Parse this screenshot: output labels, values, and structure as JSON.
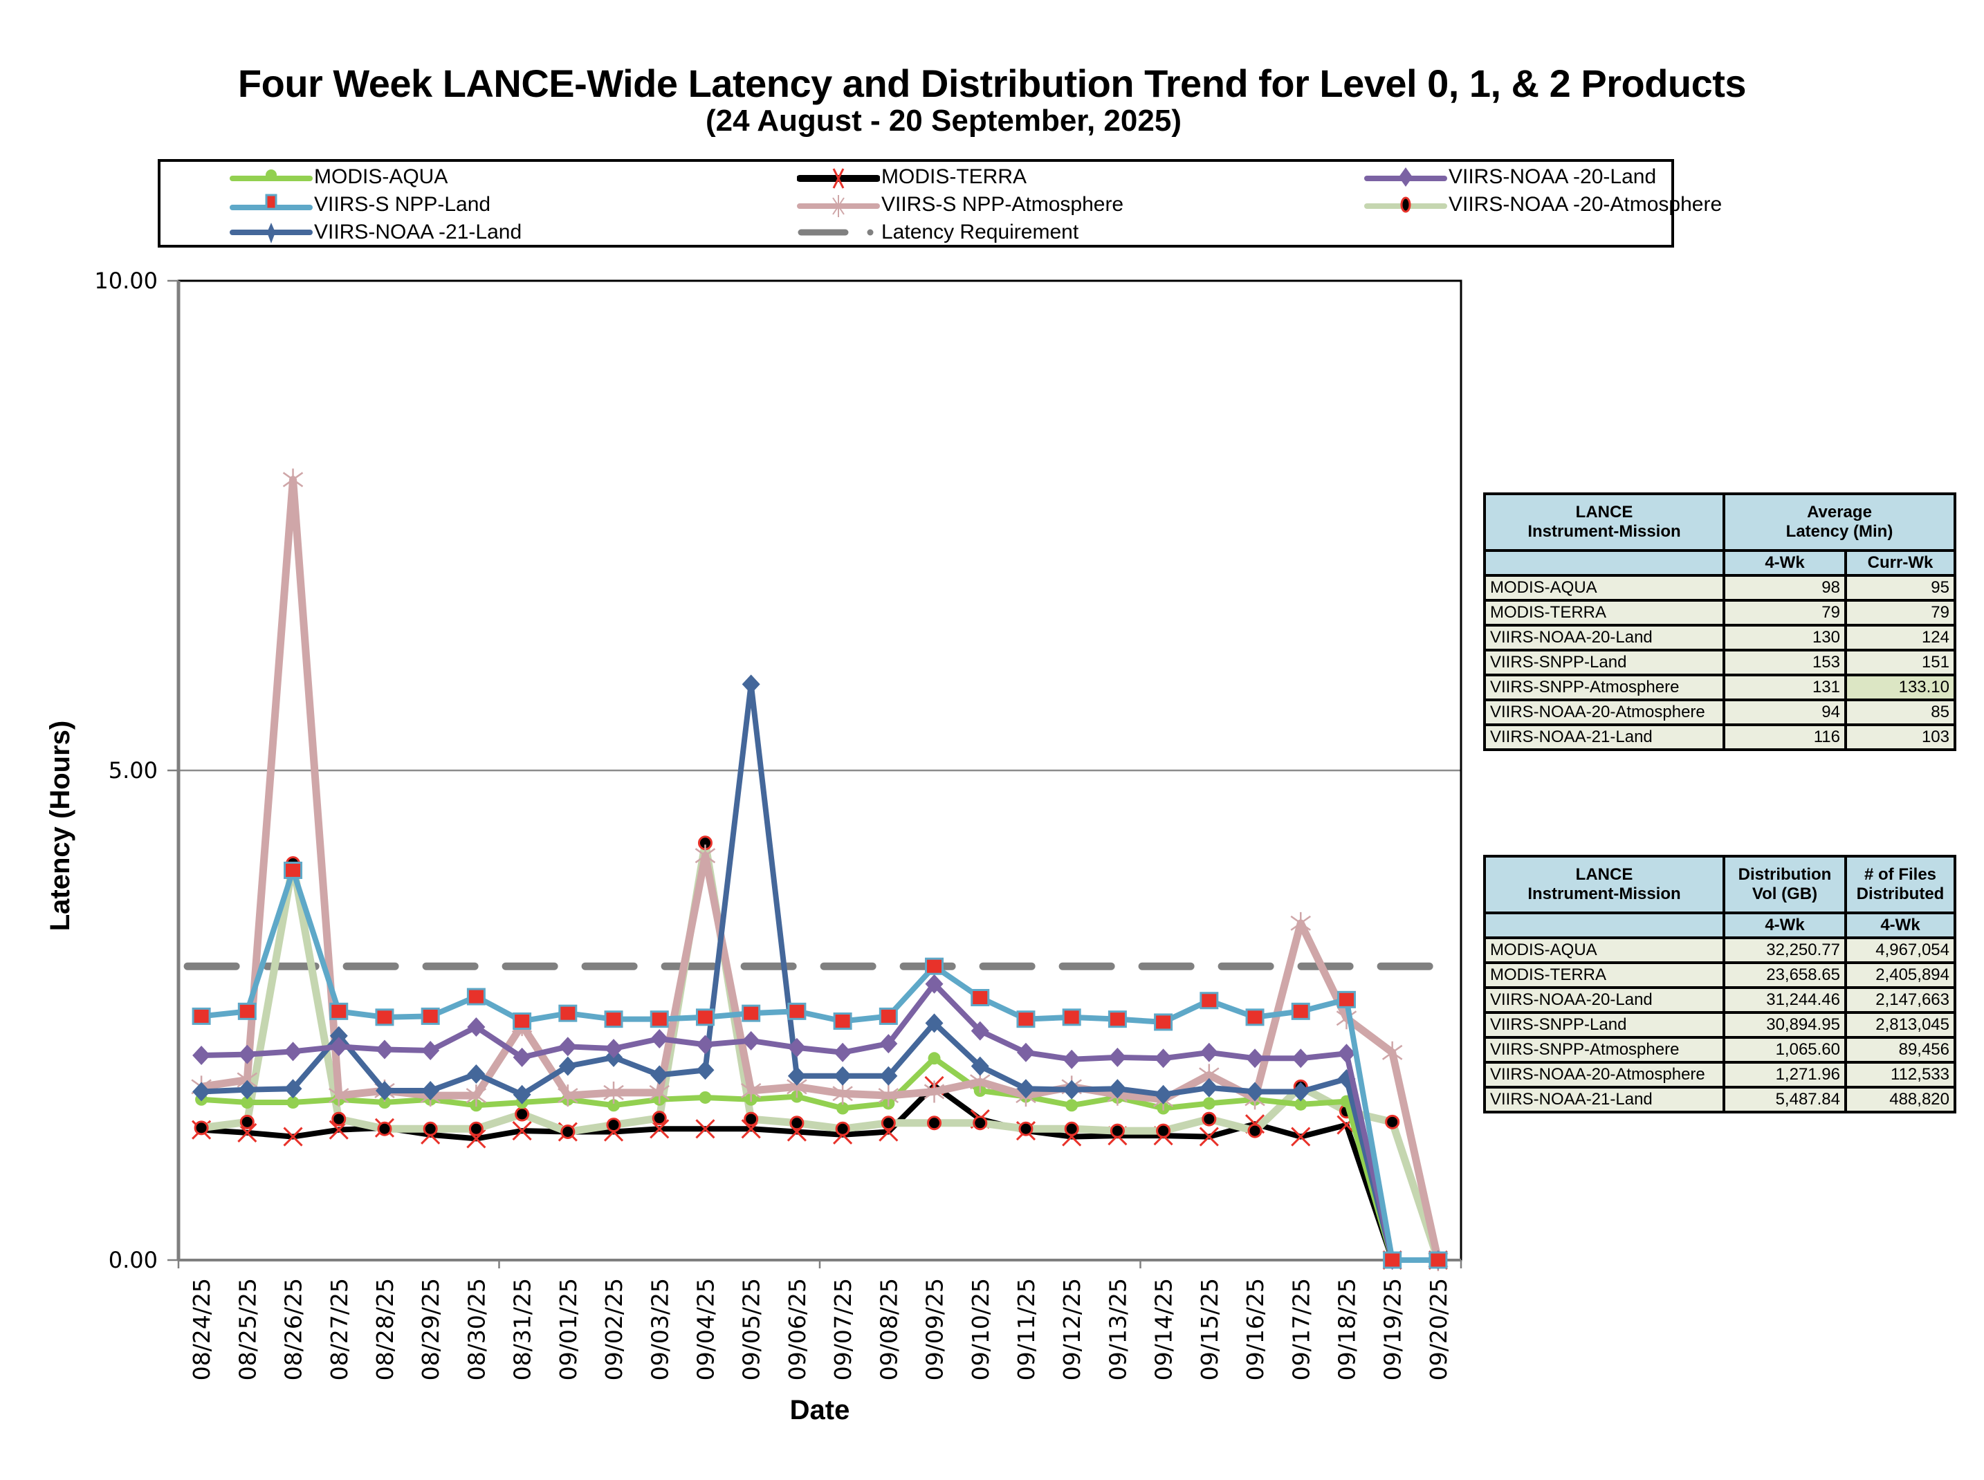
{
  "page": {
    "title": "Four Week LANCE-Wide Latency and Distribution Trend for Level 0, 1, & 2 Products",
    "subtitle": "(24  August    -  20  September,  2025)"
  },
  "chart_data": {
    "type": "line",
    "title": "Four Week LANCE-Wide Latency and Distribution Trend for Level 0, 1, & 2 Products",
    "subtitle": "(24  August    -  20  September,  2025)",
    "xlabel": "Date",
    "ylabel": "Latency (Hours)",
    "ylim": [
      0,
      10
    ],
    "yticks": [
      "0.00",
      "5.00",
      "10.00"
    ],
    "ytick_values": [
      0,
      5,
      10
    ],
    "grid": "horizontal at 5.00",
    "legend_position": "top",
    "categories": [
      "08/24/25",
      "08/25/25",
      "08/26/25",
      "08/27/25",
      "08/28/25",
      "08/29/25",
      "08/30/25",
      "08/31/25",
      "09/01/25",
      "09/02/25",
      "09/03/25",
      "09/04/25",
      "09/05/25",
      "09/06/25",
      "09/07/25",
      "09/08/25",
      "09/09/25",
      "09/10/25",
      "09/11/25",
      "09/12/25",
      "09/13/25",
      "09/14/25",
      "09/15/25",
      "09/16/25",
      "09/17/25",
      "09/18/25",
      "09/19/25",
      "09/20/25"
    ],
    "series": [
      {
        "name": "MODIS-AQUA",
        "color": "#92d050",
        "marker": "circle",
        "marker_fill": "#92d050",
        "marker_stroke": "#92d050",
        "values": [
          1.64,
          1.61,
          1.61,
          1.64,
          1.61,
          1.64,
          1.58,
          1.61,
          1.64,
          1.58,
          1.64,
          1.66,
          1.64,
          1.67,
          1.55,
          1.6,
          2.06,
          1.73,
          1.67,
          1.58,
          1.66,
          1.55,
          1.6,
          1.64,
          1.59,
          1.62,
          0,
          0
        ]
      },
      {
        "name": "MODIS-TERRA",
        "color": "#000000",
        "marker": "x",
        "marker_fill": "none",
        "marker_stroke": "#e8322a",
        "values": [
          1.33,
          1.3,
          1.26,
          1.33,
          1.35,
          1.28,
          1.24,
          1.32,
          1.31,
          1.31,
          1.34,
          1.34,
          1.34,
          1.31,
          1.28,
          1.31,
          1.78,
          1.44,
          1.32,
          1.26,
          1.27,
          1.27,
          1.26,
          1.39,
          1.26,
          1.38,
          0,
          0
        ]
      },
      {
        "name": "VIIRS-NOAA-20-Land",
        "color": "#7b62a3",
        "marker": "diamond",
        "marker_fill": "#7b62a3",
        "marker_stroke": "#7b62a3",
        "values": [
          2.09,
          2.1,
          2.13,
          2.18,
          2.15,
          2.14,
          2.38,
          2.07,
          2.18,
          2.16,
          2.26,
          2.2,
          2.24,
          2.17,
          2.12,
          2.21,
          2.82,
          2.34,
          2.12,
          2.05,
          2.07,
          2.06,
          2.12,
          2.06,
          2.06,
          2.11,
          0,
          0
        ]
      },
      {
        "name": "VIIRS-SNPP-Land",
        "color": "#5ea8c8",
        "marker": "square",
        "marker_fill": "#e8322a",
        "marker_stroke": "#5ea8c8",
        "values": [
          2.49,
          2.54,
          3.98,
          2.54,
          2.48,
          2.49,
          2.69,
          2.44,
          2.52,
          2.46,
          2.46,
          2.48,
          2.52,
          2.54,
          2.44,
          2.49,
          3.0,
          2.68,
          2.46,
          2.48,
          2.46,
          2.43,
          2.65,
          2.48,
          2.54,
          2.66,
          0,
          0
        ]
      },
      {
        "name": "VIIRS-SNPP-Atmosphere",
        "color": "#cfa6a8",
        "marker": "star",
        "marker_fill": "none",
        "marker_stroke": "#cfa6a8",
        "values": [
          1.77,
          1.84,
          7.97,
          1.68,
          1.73,
          1.68,
          1.68,
          2.4,
          1.68,
          1.71,
          1.71,
          4.13,
          1.73,
          1.77,
          1.7,
          1.68,
          1.72,
          1.82,
          1.68,
          1.77,
          1.69,
          1.64,
          1.89,
          1.65,
          3.44,
          2.47,
          2.12,
          0
        ]
      },
      {
        "name": "VIIRS-NOAA-20-Atmosphere",
        "color": "#c5d6b0",
        "marker": "circle-dot",
        "marker_fill": "#000000",
        "marker_stroke": "#e8322a",
        "values": [
          1.35,
          1.41,
          4.05,
          1.44,
          1.34,
          1.34,
          1.34,
          1.49,
          1.31,
          1.38,
          1.45,
          4.26,
          1.44,
          1.4,
          1.34,
          1.4,
          1.4,
          1.4,
          1.34,
          1.34,
          1.32,
          1.32,
          1.44,
          1.32,
          1.77,
          1.52,
          1.41,
          0
        ]
      },
      {
        "name": "VIIRS-NOAA-21-Land",
        "color": "#44679a",
        "marker": "diamond",
        "marker_fill": "#44679a",
        "marker_stroke": "#44679a",
        "values": [
          1.72,
          1.74,
          1.75,
          2.29,
          1.73,
          1.73,
          1.9,
          1.69,
          1.98,
          2.07,
          1.89,
          1.94,
          5.88,
          1.88,
          1.88,
          1.88,
          2.42,
          1.98,
          1.75,
          1.74,
          1.75,
          1.69,
          1.76,
          1.72,
          1.72,
          1.85,
          0,
          0
        ]
      },
      {
        "name": "Latency Requirement",
        "color": "#808080",
        "marker": "none",
        "dashed": true,
        "values": [
          3,
          3,
          3,
          3,
          3,
          3,
          3,
          3,
          3,
          3,
          3,
          3,
          3,
          3,
          3,
          3,
          3,
          3,
          3,
          3,
          3,
          3,
          3,
          3,
          3,
          3,
          3,
          3
        ]
      }
    ]
  },
  "legend": {
    "items": [
      {
        "label": "MODIS-AQUA"
      },
      {
        "label": "MODIS-TERRA"
      },
      {
        "label": "VIIRS-NOAA -20-Land"
      },
      {
        "label": "VIIRS-S NPP-Land"
      },
      {
        "label": "VIIRS-S NPP-Atmosphere"
      },
      {
        "label": "VIIRS-NOAA -20-Atmosphere"
      },
      {
        "label": "VIIRS-NOAA -21-Land"
      },
      {
        "label": "Latency Requirement"
      }
    ]
  },
  "latency_table": {
    "header": {
      "col1": [
        "LANCE",
        "Instrument-Mission"
      ],
      "col2": [
        "Average",
        "Latency (Min)"
      ],
      "sub": [
        "4-Wk",
        "Curr-Wk"
      ]
    },
    "rows": [
      {
        "mission": "MODIS-AQUA",
        "four_wk": "98",
        "curr_wk": "95"
      },
      {
        "mission": "MODIS-TERRA",
        "four_wk": "79",
        "curr_wk": "79"
      },
      {
        "mission": "VIIRS-NOAA-20-Land",
        "four_wk": "130",
        "curr_wk": "124"
      },
      {
        "mission": "VIIRS-SNPP-Land",
        "four_wk": "153",
        "curr_wk": "151"
      },
      {
        "mission": "VIIRS-SNPP-Atmosphere",
        "four_wk": "131",
        "curr_wk": "133.10"
      },
      {
        "mission": "VIIRS-NOAA-20-Atmosphere",
        "four_wk": "94",
        "curr_wk": "85"
      },
      {
        "mission": "VIIRS-NOAA-21-Land",
        "four_wk": "116",
        "curr_wk": "103"
      }
    ]
  },
  "distribution_table": {
    "header": {
      "col1": [
        "LANCE",
        "Instrument-Mission"
      ],
      "col2": [
        "Distribution",
        "Vol (GB)"
      ],
      "col3": [
        "# of Files",
        "Distributed"
      ],
      "sub": [
        "4-Wk",
        "4-Wk"
      ]
    },
    "rows": [
      {
        "mission": "MODIS-AQUA",
        "vol": "32,250.77",
        "files": "4,967,054"
      },
      {
        "mission": "MODIS-TERRA",
        "vol": "23,658.65",
        "files": "2,405,894"
      },
      {
        "mission": "VIIRS-NOAA-20-Land",
        "vol": "31,244.46",
        "files": "2,147,663"
      },
      {
        "mission": "VIIRS-SNPP-Land",
        "vol": "30,894.95",
        "files": "2,813,045"
      },
      {
        "mission": "VIIRS-SNPP-Atmosphere",
        "vol": "1,065.60",
        "files": "89,456"
      },
      {
        "mission": "VIIRS-NOAA-20-Atmosphere",
        "vol": "1,271.96",
        "files": "112,533"
      },
      {
        "mission": "VIIRS-NOAA-21-Land",
        "vol": "5,487.84",
        "files": "488,820"
      }
    ]
  }
}
